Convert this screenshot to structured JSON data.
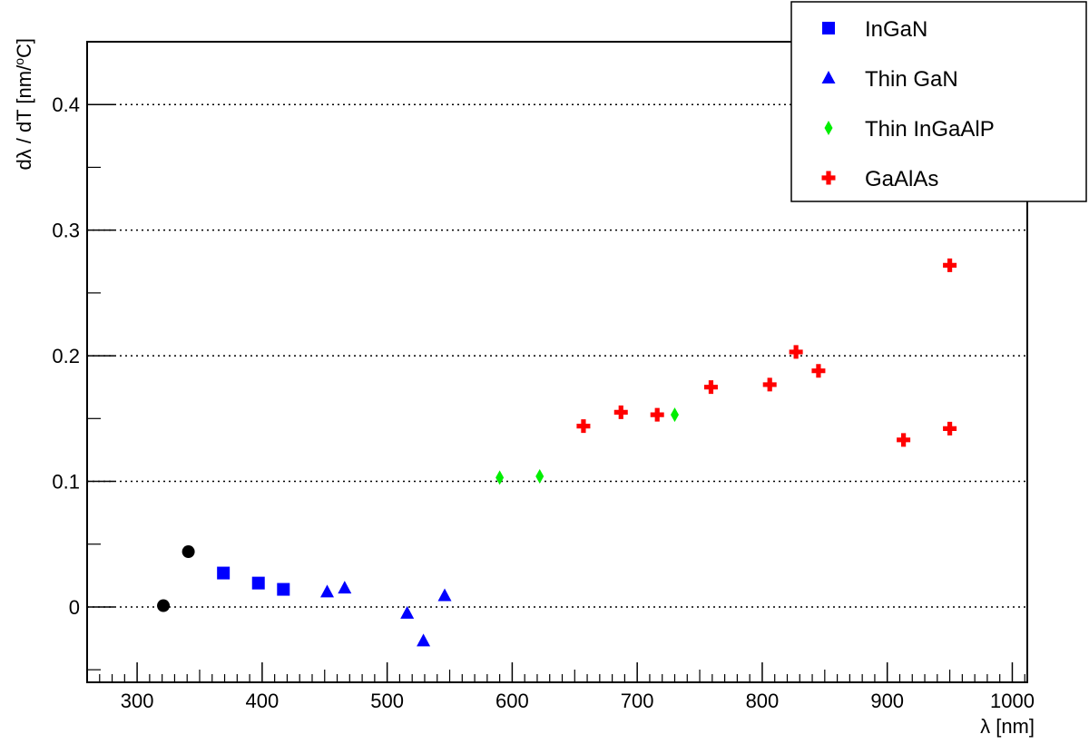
{
  "chart_data": {
    "type": "scatter",
    "title": "",
    "xlabel": "λ  [nm]",
    "ylabel_main": "dλ / dT  [nm/",
    "ylabel_sup": "o",
    "ylabel_tail": "C]",
    "xlim": [
      260,
      1012
    ],
    "ylim": [
      -0.06,
      0.45
    ],
    "x_ticks": [
      300,
      400,
      500,
      600,
      700,
      800,
      900,
      1000
    ],
    "x_tick_labels": [
      "300",
      "400",
      "500",
      "600",
      "700",
      "800",
      "900",
      "1000"
    ],
    "y_ticks": [
      0,
      0.1,
      0.2,
      0.3,
      0.4
    ],
    "y_tick_labels": [
      "0",
      "0.1",
      "0.2",
      "0.3",
      "0.4"
    ],
    "grid": "horizontal dotted at major y ticks",
    "legend_position": "top-right",
    "series": [
      {
        "name": "",
        "marker": "circle",
        "color": "#000000",
        "x": [
          321,
          341
        ],
        "y": [
          0.001,
          0.044
        ]
      },
      {
        "name": "InGaN",
        "marker": "square",
        "color": "#0000ff",
        "x": [
          369,
          397,
          417
        ],
        "y": [
          0.027,
          0.019,
          0.014
        ]
      },
      {
        "name": "Thin GaN",
        "marker": "triangle",
        "color": "#0000ff",
        "x": [
          452,
          466,
          516,
          529,
          546
        ],
        "y": [
          0.012,
          0.015,
          -0.005,
          -0.027,
          0.009
        ]
      },
      {
        "name": "Thin InGaAlP",
        "marker": "diamond",
        "color": "#00ee00",
        "x": [
          590,
          622,
          730
        ],
        "y": [
          0.103,
          0.104,
          0.153
        ]
      },
      {
        "name": "GaAlAs",
        "marker": "cross",
        "color": "#ff0000",
        "x": [
          657,
          687,
          716,
          759,
          806,
          827,
          845,
          913,
          950,
          950
        ],
        "y": [
          0.144,
          0.155,
          0.153,
          0.175,
          0.177,
          0.203,
          0.188,
          0.133,
          0.142,
          0.272
        ]
      }
    ]
  }
}
